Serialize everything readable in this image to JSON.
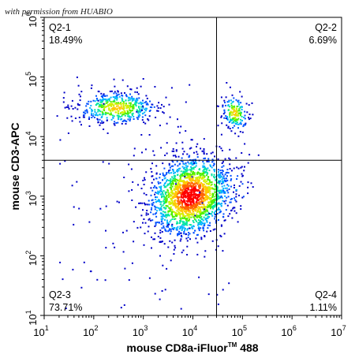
{
  "watermark": "with permission from HUABIO",
  "chart_data": {
    "type": "scatter",
    "subtype": "flow-cytometry-density-dot-plot",
    "xlabel_prefix": "mouse CD8a-iFluor",
    "xlabel_tm": "TM",
    "xlabel_suffix": " 488",
    "ylabel": "mouse CD3-APC",
    "xscale": "log",
    "yscale": "log",
    "xlim": [
      10,
      10000000
    ],
    "ylim": [
      10,
      1000000
    ],
    "x_ticks": [
      {
        "base": "10",
        "exp": "1"
      },
      {
        "base": "10",
        "exp": "2"
      },
      {
        "base": "10",
        "exp": "3"
      },
      {
        "base": "10",
        "exp": "4"
      },
      {
        "base": "10",
        "exp": "5"
      },
      {
        "base": "10",
        "exp": "6"
      },
      {
        "base": "10",
        "exp": "7"
      }
    ],
    "y_ticks": [
      {
        "base": "10",
        "exp": "1"
      },
      {
        "base": "10",
        "exp": "2"
      },
      {
        "base": "10",
        "exp": "3"
      },
      {
        "base": "10",
        "exp": "4"
      },
      {
        "base": "10",
        "exp": "5"
      },
      {
        "base": "10",
        "exp": "6"
      }
    ],
    "gate": {
      "x": 30000,
      "y": 4000
    },
    "quadrants": [
      {
        "name": "Q2-1",
        "percent": "18.49%",
        "position": "top-left"
      },
      {
        "name": "Q2-2",
        "percent": "6.69%",
        "position": "top-right"
      },
      {
        "name": "Q2-3",
        "percent": "73.71%",
        "position": "bottom-left"
      },
      {
        "name": "Q2-4",
        "percent": "1.11%",
        "position": "bottom-right"
      }
    ],
    "populations": [
      {
        "x": 9000,
        "y": 1000,
        "fraction": 0.737
      },
      {
        "x": 300,
        "y": 30000,
        "fraction": 0.185
      },
      {
        "x": 70000,
        "y": 25000,
        "fraction": 0.067
      },
      {
        "x": 60000,
        "y": 1500,
        "fraction": 0.011
      }
    ],
    "density_colors": [
      "#0000c8",
      "#0050ff",
      "#00b4ff",
      "#00e6a0",
      "#50f000",
      "#d2f000",
      "#ffc800",
      "#ff6400",
      "#ff0000"
    ],
    "grid": false
  }
}
